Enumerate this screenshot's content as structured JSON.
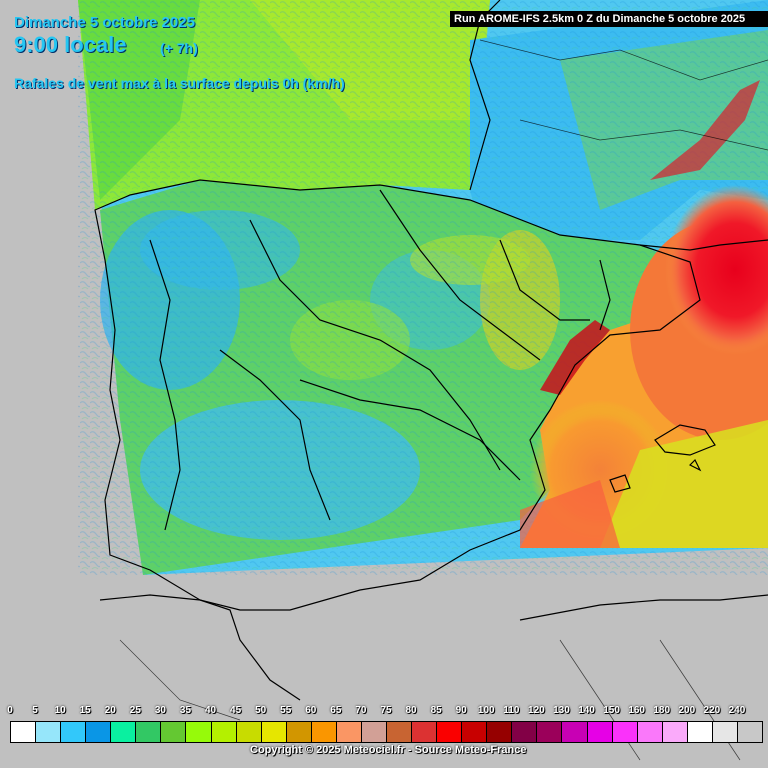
{
  "header": {
    "date": "Dimanche 5 octobre 2025",
    "time": "9:00 locale",
    "offset": "(+ 7h)",
    "description": "Rafales de vent max à la surface depuis 0h (km/h)",
    "run": "Run AROME-IFS 2.5km 0 Z du Dimanche 5 octobre 2025"
  },
  "legend": {
    "ticks": [
      "0",
      "5",
      "10",
      "15",
      "20",
      "25",
      "30",
      "35",
      "40",
      "45",
      "50",
      "55",
      "60",
      "65",
      "70",
      "75",
      "80",
      "85",
      "90",
      "100",
      "110",
      "120",
      "130",
      "140",
      "150",
      "160",
      "180",
      "200",
      "220",
      "240"
    ],
    "colors": [
      "#ffffff",
      "#96e6fa",
      "#32c8fa",
      "#0a96e6",
      "#0af0a0",
      "#32c864",
      "#64c832",
      "#96fa0a",
      "#b4f000",
      "#c8dc00",
      "#e6e600",
      "#d29600",
      "#fa9600",
      "#fa9664",
      "#d2a096",
      "#c86432",
      "#dc3232",
      "#fa0000",
      "#c80000",
      "#960000",
      "#820046",
      "#9b005a",
      "#c800b4",
      "#e600e6",
      "#fa32fa",
      "#fa78fa",
      "#faaafa",
      "#ffffff",
      "#e6e6e6",
      "#c8c8c8"
    ]
  },
  "footer": {
    "copyright": "Copyright © 2025 Meteociel.fr - Source Meteo-France"
  }
}
